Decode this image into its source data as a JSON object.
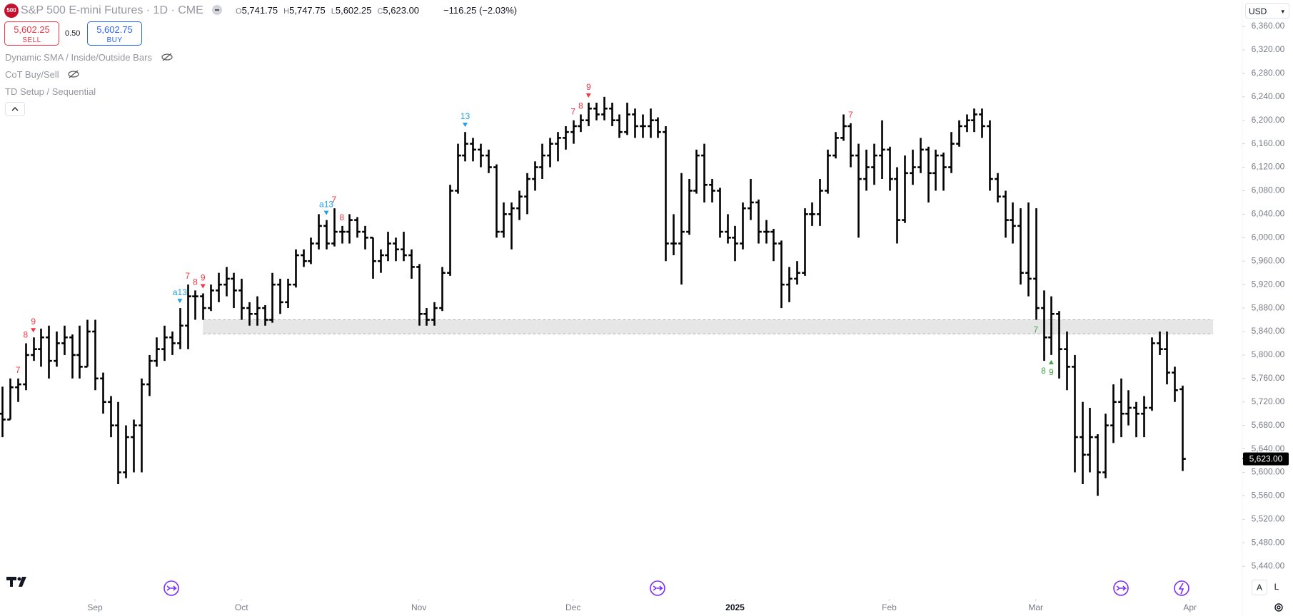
{
  "header": {
    "logo": "500",
    "symbol": "S&P 500 E-mini Futures · 1D · CME",
    "ohlc": [
      {
        "key": "O",
        "value": "5,741.75"
      },
      {
        "key": "H",
        "value": "5,747.75"
      },
      {
        "key": "L",
        "value": "5,602.25"
      },
      {
        "key": "C",
        "value": "5,623.00"
      }
    ],
    "change": "−116.25 (−2.03%)",
    "sell": {
      "price": "5,602.25",
      "label": "SELL"
    },
    "spread": "0.50",
    "buy": {
      "price": "5,602.75",
      "label": "BUY"
    },
    "indicators": [
      "Dynamic SMA / Inside/Outside Bars",
      "CoT Buy/Sell",
      "TD Setup / Sequential"
    ],
    "currency": "USD",
    "buttons": [
      "A",
      "L"
    ]
  },
  "chart_data": {
    "type": "ohlc",
    "color": "#000000",
    "xlim": [
      -0.32,
      160.6
    ],
    "xticks": [
      {
        "value": 12,
        "label": "Sep"
      },
      {
        "value": 31,
        "label": "Oct"
      },
      {
        "value": 54,
        "label": "Nov"
      },
      {
        "value": 74,
        "label": "Dec"
      },
      {
        "value": 95,
        "label": "2025"
      },
      {
        "value": 115,
        "label": "Feb"
      },
      {
        "value": 134,
        "label": "Mar"
      },
      {
        "value": 154,
        "label": "Apr"
      }
    ],
    "ylim": [
      5388,
      6405
    ],
    "yticks": [
      {
        "value": 5440,
        "label": "5,440.00"
      },
      {
        "value": 5480,
        "label": "5,480.00"
      },
      {
        "value": 5520,
        "label": "5,520.00"
      },
      {
        "value": 5560,
        "label": "5,560.00"
      },
      {
        "value": 5600,
        "label": "5,600.00"
      },
      {
        "value": 5640,
        "label": "5,640.00"
      },
      {
        "value": 5680,
        "label": "5,680.00"
      },
      {
        "value": 5720,
        "label": "5,720.00"
      },
      {
        "value": 5760,
        "label": "5,760.00"
      },
      {
        "value": 5800,
        "label": "5,800.00"
      },
      {
        "value": 5840,
        "label": "5,840.00"
      },
      {
        "value": 5880,
        "label": "5,880.00"
      },
      {
        "value": 5920,
        "label": "5,920.00"
      },
      {
        "value": 5960,
        "label": "5,960.00"
      },
      {
        "value": 6000,
        "label": "6,000.00"
      },
      {
        "value": 6040,
        "label": "6,040.00"
      },
      {
        "value": 6080,
        "label": "6,080.00"
      },
      {
        "value": 6120,
        "label": "6,120.00"
      },
      {
        "value": 6160,
        "label": "6,160.00"
      },
      {
        "value": 6200,
        "label": "6,200.00"
      },
      {
        "value": 6240,
        "label": "6,240.00"
      },
      {
        "value": 6280,
        "label": "6,280.00"
      },
      {
        "value": 6320,
        "label": "6,320.00"
      },
      {
        "value": 6360,
        "label": "6,360.00"
      }
    ],
    "last_price": {
      "value": 5623,
      "label": "5,623.00"
    },
    "zone": {
      "start": 26,
      "end": 157,
      "low": 5836,
      "high": 5860
    },
    "bars": [
      [
        5700,
        5746,
        5660,
        5690
      ],
      [
        5690,
        5760,
        5690,
        5745
      ],
      [
        5745,
        5760,
        5720,
        5750
      ],
      [
        5750,
        5820,
        5740,
        5800
      ],
      [
        5800,
        5830,
        5790,
        5810
      ],
      [
        5810,
        5845,
        5780,
        5830
      ],
      [
        5830,
        5850,
        5760,
        5790
      ],
      [
        5790,
        5840,
        5780,
        5820
      ],
      [
        5820,
        5850,
        5800,
        5830
      ],
      [
        5830,
        5835,
        5760,
        5800
      ],
      [
        5800,
        5850,
        5760,
        5780
      ],
      [
        5780,
        5860,
        5780,
        5840
      ],
      [
        5840,
        5860,
        5740,
        5760
      ],
      [
        5760,
        5770,
        5700,
        5720
      ],
      [
        5720,
        5730,
        5660,
        5680
      ],
      [
        5680,
        5720,
        5580,
        5600
      ],
      [
        5600,
        5680,
        5590,
        5660
      ],
      [
        5660,
        5690,
        5600,
        5680
      ],
      [
        5680,
        5760,
        5600,
        5750
      ],
      [
        5750,
        5800,
        5730,
        5790
      ],
      [
        5790,
        5830,
        5780,
        5810
      ],
      [
        5810,
        5850,
        5790,
        5830
      ],
      [
        5830,
        5840,
        5800,
        5820
      ],
      [
        5820,
        5880,
        5810,
        5850
      ],
      [
        5850,
        5920,
        5810,
        5900
      ],
      [
        5900,
        5910,
        5860,
        5900
      ],
      [
        5900,
        5905,
        5860,
        5880
      ],
      [
        5880,
        5920,
        5875,
        5910
      ],
      [
        5910,
        5940,
        5890,
        5920
      ],
      [
        5920,
        5950,
        5900,
        5930
      ],
      [
        5930,
        5940,
        5880,
        5910
      ],
      [
        5910,
        5930,
        5860,
        5880
      ],
      [
        5880,
        5890,
        5850,
        5870
      ],
      [
        5870,
        5900,
        5850,
        5880
      ],
      [
        5880,
        5885,
        5850,
        5860
      ],
      [
        5860,
        5940,
        5855,
        5920
      ],
      [
        5920,
        5930,
        5870,
        5890
      ],
      [
        5890,
        5930,
        5880,
        5920
      ],
      [
        5920,
        5980,
        5915,
        5970
      ],
      [
        5970,
        5980,
        5950,
        5960
      ],
      [
        5960,
        6000,
        5955,
        5990
      ],
      [
        5990,
        6040,
        5980,
        6020
      ],
      [
        6020,
        6030,
        5980,
        5990
      ],
      [
        5990,
        6050,
        5985,
        6010
      ],
      [
        6010,
        6020,
        5990,
        6010
      ],
      [
        6010,
        6040,
        5990,
        6030
      ],
      [
        6030,
        6035,
        6000,
        6010
      ],
      [
        6010,
        6020,
        5980,
        6000
      ],
      [
        6000,
        6000,
        5930,
        5960
      ],
      [
        5960,
        5980,
        5940,
        5970
      ],
      [
        5970,
        6010,
        5960,
        5990
      ],
      [
        5990,
        6000,
        5960,
        5980
      ],
      [
        5980,
        6010,
        5960,
        5970
      ],
      [
        5970,
        5980,
        5930,
        5950
      ],
      [
        5950,
        5955,
        5850,
        5870
      ],
      [
        5870,
        5880,
        5850,
        5860
      ],
      [
        5860,
        5890,
        5850,
        5880
      ],
      [
        5880,
        5950,
        5875,
        5940
      ],
      [
        5940,
        6090,
        5935,
        6080
      ],
      [
        6080,
        6160,
        6075,
        6140
      ],
      [
        6140,
        6180,
        6130,
        6160
      ],
      [
        6160,
        6170,
        6130,
        6150
      ],
      [
        6150,
        6160,
        6120,
        6140
      ],
      [
        6140,
        6150,
        6110,
        6120
      ],
      [
        6120,
        6125,
        6000,
        6010
      ],
      [
        6010,
        6060,
        6000,
        6040
      ],
      [
        6040,
        6060,
        5980,
        6050
      ],
      [
        6050,
        6080,
        6030,
        6070
      ],
      [
        6070,
        6110,
        6040,
        6100
      ],
      [
        6100,
        6130,
        6080,
        6120
      ],
      [
        6120,
        6160,
        6100,
        6140
      ],
      [
        6140,
        6170,
        6120,
        6160
      ],
      [
        6160,
        6180,
        6130,
        6170
      ],
      [
        6170,
        6190,
        6150,
        6180
      ],
      [
        6180,
        6200,
        6160,
        6190
      ],
      [
        6190,
        6210,
        6180,
        6200
      ],
      [
        6200,
        6230,
        6190,
        6220
      ],
      [
        6220,
        6230,
        6200,
        6210
      ],
      [
        6210,
        6240,
        6200,
        6220
      ],
      [
        6220,
        6230,
        6190,
        6200
      ],
      [
        6200,
        6210,
        6170,
        6180
      ],
      [
        6180,
        6230,
        6175,
        6210
      ],
      [
        6210,
        6220,
        6170,
        6190
      ],
      [
        6190,
        6210,
        6170,
        6190
      ],
      [
        6190,
        6220,
        6170,
        6200
      ],
      [
        6200,
        6205,
        6170,
        6180
      ],
      [
        6180,
        6190,
        5960,
        5990
      ],
      [
        5990,
        6040,
        5970,
        5990
      ],
      [
        5990,
        6110,
        5920,
        6010
      ],
      [
        6010,
        6100,
        6005,
        6080
      ],
      [
        6080,
        6150,
        6075,
        6140
      ],
      [
        6140,
        6160,
        6060,
        6090
      ],
      [
        6090,
        6100,
        6060,
        6080
      ],
      [
        6080,
        6085,
        6000,
        6010
      ],
      [
        6010,
        6040,
        5990,
        6000
      ],
      [
        6000,
        6020,
        5960,
        5990
      ],
      [
        5990,
        6060,
        5980,
        6050
      ],
      [
        6050,
        6100,
        6030,
        6060
      ],
      [
        6060,
        6065,
        5990,
        6010
      ],
      [
        6010,
        6030,
        5990,
        6010
      ],
      [
        6010,
        6015,
        5960,
        5990
      ],
      [
        5990,
        5995,
        5880,
        5920
      ],
      [
        5920,
        5950,
        5890,
        5930
      ],
      [
        5930,
        5960,
        5920,
        5940
      ],
      [
        5940,
        6050,
        5935,
        6040
      ],
      [
        6040,
        6060,
        6020,
        6040
      ],
      [
        6040,
        6100,
        6020,
        6080
      ],
      [
        6080,
        6150,
        6075,
        6140
      ],
      [
        6140,
        6180,
        6135,
        6170
      ],
      [
        6170,
        6210,
        6165,
        6190
      ],
      [
        6190,
        6195,
        6120,
        6140
      ],
      [
        6140,
        6160,
        6000,
        6100
      ],
      [
        6100,
        6150,
        6080,
        6120
      ],
      [
        6120,
        6160,
        6090,
        6140
      ],
      [
        6140,
        6200,
        6100,
        6150
      ],
      [
        6150,
        6155,
        6080,
        6100
      ],
      [
        6100,
        6120,
        5990,
        6030
      ],
      [
        6030,
        6140,
        6025,
        6110
      ],
      [
        6110,
        6150,
        6090,
        6120
      ],
      [
        6120,
        6170,
        6110,
        6150
      ],
      [
        6150,
        6155,
        6060,
        6110
      ],
      [
        6110,
        6150,
        6080,
        6140
      ],
      [
        6140,
        6145,
        6080,
        6120
      ],
      [
        6120,
        6180,
        6110,
        6160
      ],
      [
        6160,
        6200,
        6155,
        6190
      ],
      [
        6190,
        6210,
        6180,
        6200
      ],
      [
        6200,
        6220,
        6180,
        6210
      ],
      [
        6210,
        6220,
        6170,
        6190
      ],
      [
        6190,
        6200,
        6080,
        6100
      ],
      [
        6100,
        6110,
        6060,
        6070
      ],
      [
        6070,
        6080,
        6000,
        6030
      ],
      [
        6030,
        6060,
        5990,
        6020
      ],
      [
        6020,
        6050,
        5920,
        5940
      ],
      [
        5940,
        6060,
        5900,
        5930
      ],
      [
        5930,
        6050,
        5860,
        5880
      ],
      [
        5880,
        5910,
        5790,
        5830
      ],
      [
        5830,
        5900,
        5800,
        5870
      ],
      [
        5870,
        5875,
        5760,
        5810
      ],
      [
        5810,
        5840,
        5740,
        5780
      ],
      [
        5780,
        5800,
        5600,
        5660
      ],
      [
        5660,
        5720,
        5580,
        5630
      ],
      [
        5630,
        5710,
        5600,
        5660
      ],
      [
        5660,
        5665,
        5560,
        5600
      ],
      [
        5600,
        5700,
        5590,
        5680
      ],
      [
        5680,
        5750,
        5650,
        5720
      ],
      [
        5720,
        5760,
        5660,
        5700
      ],
      [
        5700,
        5740,
        5680,
        5710
      ],
      [
        5710,
        5720,
        5660,
        5700
      ],
      [
        5700,
        5730,
        5660,
        5710
      ],
      [
        5710,
        5830,
        5705,
        5820
      ],
      [
        5820,
        5840,
        5800,
        5810
      ],
      [
        5810,
        5840,
        5750,
        5770
      ],
      [
        5770,
        5780,
        5720,
        5740
      ],
      [
        5741.75,
        5747.75,
        5602.25,
        5623
      ]
    ],
    "annotations": [
      {
        "bar": 2,
        "text": "7",
        "color": "#f23645",
        "pos": "above",
        "arrow": false
      },
      {
        "bar": 3,
        "text": "8",
        "color": "#f23645",
        "pos": "above",
        "arrow": false
      },
      {
        "bar": 4,
        "text": "9",
        "color": "#f23645",
        "pos": "above",
        "arrow": true
      },
      {
        "bar": 23,
        "text": "a13",
        "color": "#22a0e0",
        "pos": "above",
        "arrow": true
      },
      {
        "bar": 24,
        "text": "7",
        "color": "#f23645",
        "pos": "above",
        "arrow": false
      },
      {
        "bar": 25,
        "text": "8",
        "color": "#f23645",
        "pos": "above",
        "arrow": false
      },
      {
        "bar": 26,
        "text": "9",
        "color": "#f23645",
        "pos": "above",
        "arrow": true
      },
      {
        "bar": 42,
        "text": "a13",
        "color": "#22a0e0",
        "pos": "above",
        "arrow": true
      },
      {
        "bar": 43,
        "text": "7",
        "color": "#f23645",
        "pos": "above",
        "arrow": false
      },
      {
        "bar": 44,
        "text": "8",
        "color": "#f23645",
        "pos": "above",
        "arrow": false
      },
      {
        "bar": 60,
        "text": "13",
        "color": "#22a0e0",
        "pos": "above",
        "arrow": true
      },
      {
        "bar": 74,
        "text": "7",
        "color": "#f23645",
        "pos": "above",
        "arrow": false
      },
      {
        "bar": 75,
        "text": "8",
        "color": "#f23645",
        "pos": "above",
        "arrow": false
      },
      {
        "bar": 76,
        "text": "9",
        "color": "#f23645",
        "pos": "above",
        "arrow": true
      },
      {
        "bar": 110,
        "text": "7",
        "color": "#f23645",
        "pos": "above",
        "arrow": false
      },
      {
        "bar": 134,
        "text": "7",
        "color": "#43a047",
        "pos": "below",
        "arrow": false
      },
      {
        "bar": 135,
        "text": "8",
        "color": "#43a047",
        "pos": "below",
        "arrow": false
      },
      {
        "bar": 136,
        "text": "9",
        "color": "#43a047",
        "pos": "below",
        "arrow": true
      }
    ]
  }
}
